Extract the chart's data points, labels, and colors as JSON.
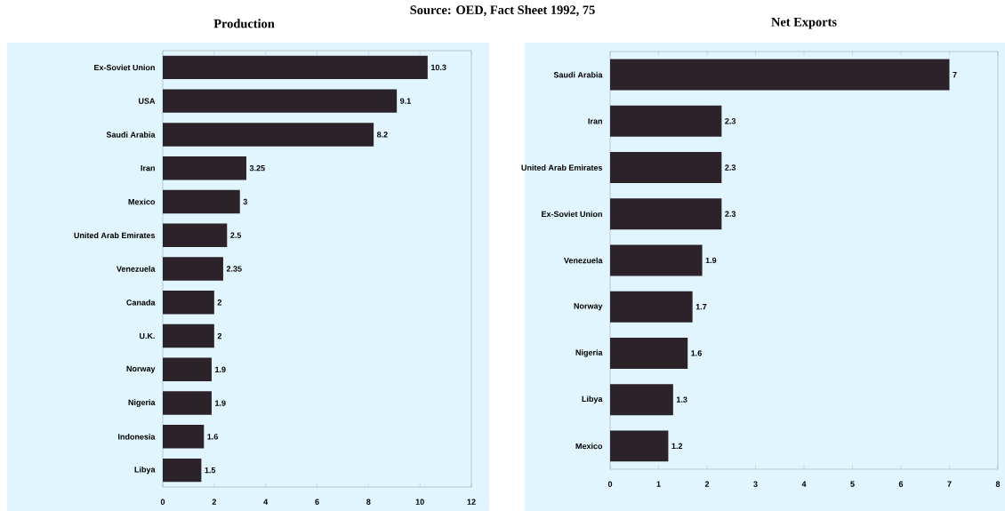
{
  "chart_data": [
    {
      "type": "bar",
      "orientation": "horizontal",
      "title": "Production",
      "annotations": [
        "Source: OED, Fact Sheet 1992, 75"
      ],
      "categories": [
        "Ex-Soviet Union",
        "USA",
        "Saudi Arabia",
        "Iran",
        "Mexico",
        "United Arab Emirates",
        "Venezuela",
        "Canada",
        "U.K.",
        "Norway",
        "Nigeria",
        "Indonesia",
        "Libya"
      ],
      "values": [
        10.3,
        9.1,
        8.2,
        3.25,
        3,
        2.5,
        2.35,
        2,
        2,
        1.9,
        1.9,
        1.6,
        1.5
      ],
      "color": "#2b2329",
      "data_labels": true,
      "xlim": [
        0,
        12
      ],
      "xticks": [
        0,
        2,
        4,
        6,
        8,
        10,
        12
      ]
    },
    {
      "type": "bar",
      "orientation": "horizontal",
      "title": "Net Exports",
      "categories": [
        "Saudi Arabia",
        "Iran",
        "United Arab Emirates",
        "Ex-Soviet Union",
        "Venezuela",
        "Norway",
        "Nigeria",
        "Libya",
        "Mexico"
      ],
      "values": [
        7,
        2.3,
        2.3,
        2.3,
        1.9,
        1.7,
        1.6,
        1.3,
        1.2
      ],
      "color": "#2b2329",
      "data_labels": true,
      "xlim": [
        0,
        8
      ],
      "xticks": [
        0,
        1,
        2,
        3,
        4,
        5,
        6,
        7,
        8
      ]
    }
  ]
}
